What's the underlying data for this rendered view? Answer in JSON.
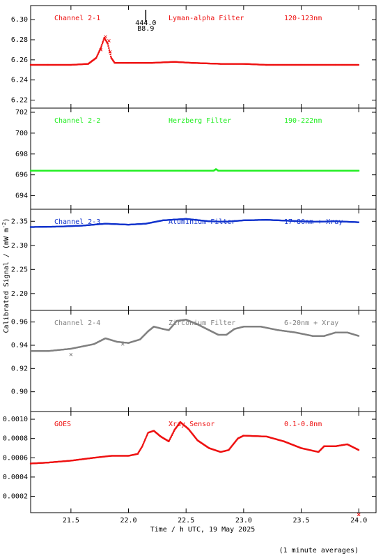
{
  "x_axis": {
    "title": "Time / h UTC, 19 May 2025",
    "ticks": [
      21.5,
      22.0,
      22.5,
      23.0,
      23.5,
      24.0
    ],
    "tick_labels": [
      "21.5",
      "22.0",
      "22.5",
      "23.0",
      "23.5",
      "24.0"
    ],
    "range": [
      21.15,
      24.15
    ]
  },
  "y_axis_label": "Calibrated Signal / (mW m",
  "y_axis_label_sup": "-2",
  "y_axis_label_end": ")",
  "footnote": "(1 minute averages)",
  "marker": {
    "x": 22.15,
    "label_top": "444.0",
    "label_bottom": "B8.9"
  },
  "chart_data": [
    {
      "type": "scatter",
      "title": "",
      "channel": "Channel 2-1",
      "filter": "Lyman-alpha Filter",
      "band": "120-123nm",
      "color": "#ee1111",
      "ylim": [
        6.212,
        6.314
      ],
      "y_ticks": [
        "6.22",
        "6.24",
        "6.26",
        "6.28",
        "6.30"
      ],
      "y_tick_values": [
        6.22,
        6.24,
        6.26,
        6.28,
        6.3
      ],
      "series_points": [
        [
          21.15,
          6.255
        ],
        [
          21.3,
          6.255
        ],
        [
          21.5,
          6.255
        ],
        [
          21.65,
          6.256
        ],
        [
          21.72,
          6.262
        ],
        [
          21.76,
          6.272
        ],
        [
          21.79,
          6.282
        ],
        [
          21.82,
          6.276
        ],
        [
          21.85,
          6.262
        ],
        [
          21.88,
          6.257
        ],
        [
          22.0,
          6.257
        ],
        [
          22.2,
          6.257
        ],
        [
          22.4,
          6.258
        ],
        [
          22.55,
          6.257
        ],
        [
          22.8,
          6.256
        ],
        [
          23.0,
          6.256
        ],
        [
          23.2,
          6.255
        ],
        [
          23.5,
          6.255
        ],
        [
          23.8,
          6.255
        ],
        [
          24.0,
          6.255
        ]
      ],
      "outliers": [
        [
          21.76,
          6.27
        ],
        [
          21.8,
          6.283
        ],
        [
          21.83,
          6.279
        ],
        [
          21.84,
          6.268
        ]
      ]
    },
    {
      "type": "scatter",
      "title": "",
      "channel": "Channel 2-2",
      "filter": "Herzberg Filter",
      "band": "190-222nm",
      "color": "#22ee22",
      "ylim": [
        692.7,
        702.4
      ],
      "y_ticks": [
        "694",
        "696",
        "698",
        "700",
        "702"
      ],
      "y_tick_values": [
        694,
        696,
        698,
        700,
        702
      ],
      "series_points": [
        [
          21.15,
          696.4
        ],
        [
          21.5,
          696.4
        ],
        [
          22.0,
          696.4
        ],
        [
          22.5,
          696.4
        ],
        [
          22.74,
          696.4
        ],
        [
          22.76,
          696.55
        ],
        [
          22.78,
          696.4
        ],
        [
          23.0,
          696.4
        ],
        [
          23.5,
          696.4
        ],
        [
          24.0,
          696.4
        ]
      ],
      "outliers": []
    },
    {
      "type": "scatter",
      "title": "",
      "channel": "Channel 2-3",
      "filter": "Aluminium Filter",
      "band": "17-80nm + Xray",
      "color": "#1133cc",
      "ylim": [
        2.165,
        2.375
      ],
      "y_ticks": [
        "2.20",
        "2.25",
        "2.30",
        "2.35"
      ],
      "y_tick_values": [
        2.2,
        2.25,
        2.3,
        2.35
      ],
      "series_points": [
        [
          21.15,
          2.338
        ],
        [
          21.4,
          2.339
        ],
        [
          21.6,
          2.341
        ],
        [
          21.8,
          2.345
        ],
        [
          22.0,
          2.343
        ],
        [
          22.15,
          2.345
        ],
        [
          22.3,
          2.352
        ],
        [
          22.5,
          2.355
        ],
        [
          22.7,
          2.35
        ],
        [
          22.85,
          2.349
        ],
        [
          23.0,
          2.352
        ],
        [
          23.2,
          2.353
        ],
        [
          23.4,
          2.351
        ],
        [
          23.6,
          2.349
        ],
        [
          23.8,
          2.35
        ],
        [
          24.0,
          2.348
        ]
      ],
      "outliers": []
    },
    {
      "type": "scatter",
      "title": "",
      "channel": "Channel 2-4",
      "filter": "Zirconium Filter",
      "band": "6-20nm + Xray",
      "color": "#808080",
      "ylim": [
        0.883,
        0.97
      ],
      "y_ticks": [
        "0.90",
        "0.92",
        "0.94",
        "0.96"
      ],
      "y_tick_values": [
        0.9,
        0.92,
        0.94,
        0.96
      ],
      "series_points": [
        [
          21.15,
          0.935
        ],
        [
          21.3,
          0.935
        ],
        [
          21.5,
          0.937
        ],
        [
          21.6,
          0.939
        ],
        [
          21.7,
          0.941
        ],
        [
          21.8,
          0.946
        ],
        [
          21.9,
          0.943
        ],
        [
          22.0,
          0.942
        ],
        [
          22.1,
          0.945
        ],
        [
          22.17,
          0.952
        ],
        [
          22.22,
          0.956
        ],
        [
          22.3,
          0.954
        ],
        [
          22.35,
          0.953
        ],
        [
          22.42,
          0.961
        ],
        [
          22.5,
          0.962
        ],
        [
          22.6,
          0.958
        ],
        [
          22.7,
          0.953
        ],
        [
          22.78,
          0.949
        ],
        [
          22.85,
          0.949
        ],
        [
          22.92,
          0.954
        ],
        [
          23.0,
          0.956
        ],
        [
          23.15,
          0.956
        ],
        [
          23.3,
          0.953
        ],
        [
          23.45,
          0.951
        ],
        [
          23.6,
          0.948
        ],
        [
          23.7,
          0.948
        ],
        [
          23.8,
          0.951
        ],
        [
          23.9,
          0.951
        ],
        [
          24.0,
          0.948
        ]
      ],
      "outliers": [
        [
          21.5,
          0.932
        ],
        [
          21.95,
          0.941
        ]
      ]
    },
    {
      "type": "scatter",
      "title": "",
      "channel": "GOES",
      "filter": "Xray Sensor",
      "band": "0.1-0.8nm",
      "color": "#ee1111",
      "ylim": [
        3e-05,
        0.00108
      ],
      "y_ticks": [
        "0.0002",
        "0.0004",
        "0.0006",
        "0.0008",
        "0.0010"
      ],
      "y_tick_values": [
        0.0002,
        0.0004,
        0.0006,
        0.0008,
        0.001
      ],
      "series_points": [
        [
          21.15,
          0.00054
        ],
        [
          21.3,
          0.00055
        ],
        [
          21.5,
          0.00057
        ],
        [
          21.7,
          0.0006
        ],
        [
          21.85,
          0.00062
        ],
        [
          22.0,
          0.00062
        ],
        [
          22.08,
          0.00064
        ],
        [
          22.12,
          0.00072
        ],
        [
          22.17,
          0.00086
        ],
        [
          22.22,
          0.00088
        ],
        [
          22.28,
          0.00082
        ],
        [
          22.35,
          0.00077
        ],
        [
          22.4,
          0.00089
        ],
        [
          22.45,
          0.00097
        ],
        [
          22.52,
          0.0009
        ],
        [
          22.6,
          0.00078
        ],
        [
          22.7,
          0.0007
        ],
        [
          22.8,
          0.00066
        ],
        [
          22.87,
          0.00068
        ],
        [
          22.95,
          0.0008
        ],
        [
          23.0,
          0.00083
        ],
        [
          23.2,
          0.00082
        ],
        [
          23.35,
          0.00077
        ],
        [
          23.5,
          0.0007
        ],
        [
          23.65,
          0.00066
        ],
        [
          23.7,
          0.00072
        ],
        [
          23.8,
          0.00072
        ],
        [
          23.9,
          0.00074
        ],
        [
          24.0,
          0.00068
        ]
      ],
      "outliers": [
        [
          24.0,
          1e-05
        ]
      ]
    }
  ]
}
